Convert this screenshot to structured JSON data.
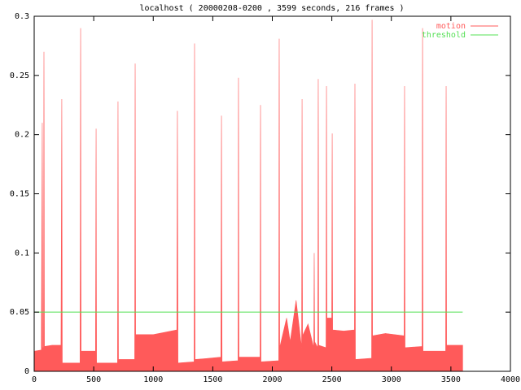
{
  "chart_data": {
    "type": "area",
    "title": "localhost ( 20000208-0200 , 3599 seconds, 216 frames )",
    "series": [
      {
        "name": "motion",
        "color": "#ff5a5a",
        "fill": true,
        "x": [
          0,
          60,
          68,
          72,
          78,
          82,
          86,
          150,
          225,
          232,
          236,
          240,
          385,
          390,
          394,
          398,
          515,
          520,
          524,
          528,
          700,
          704,
          708,
          712,
          844,
          848,
          852,
          1000,
          1100,
          1198,
          1203,
          1208,
          1343,
          1347,
          1351,
          1470,
          1568,
          1573,
          1578,
          1712,
          1716,
          1720,
          1897,
          1901,
          1905,
          2054,
          2058,
          2062,
          2120,
          2150,
          2200,
          2246,
          2250,
          2254,
          2300,
          2348,
          2352,
          2356,
          2382,
          2386,
          2390,
          2451,
          2455,
          2459,
          2499,
          2503,
          2507,
          2600,
          2690,
          2694,
          2698,
          2834,
          2838,
          2842,
          2950,
          3107,
          3111,
          3115,
          3258,
          3262,
          3266,
          3456,
          3460,
          3464,
          3599
        ],
        "values": [
          0.017,
          0.018,
          0.21,
          0.02,
          0.02,
          0.27,
          0.021,
          0.022,
          0.022,
          0.23,
          0.007,
          0.007,
          0.007,
          0.29,
          0.017,
          0.017,
          0.017,
          0.205,
          0.007,
          0.007,
          0.007,
          0.228,
          0.009,
          0.01,
          0.01,
          0.26,
          0.031,
          0.031,
          0.033,
          0.035,
          0.22,
          0.007,
          0.008,
          0.277,
          0.01,
          0.011,
          0.012,
          0.216,
          0.008,
          0.009,
          0.248,
          0.012,
          0.012,
          0.225,
          0.008,
          0.009,
          0.281,
          0.02,
          0.045,
          0.025,
          0.06,
          0.02,
          0.23,
          0.03,
          0.04,
          0.02,
          0.1,
          0.025,
          0.02,
          0.247,
          0.022,
          0.02,
          0.241,
          0.045,
          0.045,
          0.201,
          0.035,
          0.034,
          0.035,
          0.243,
          0.01,
          0.011,
          0.297,
          0.03,
          0.032,
          0.03,
          0.241,
          0.02,
          0.021,
          0.29,
          0.017,
          0.017,
          0.241,
          0.022,
          0.022
        ]
      },
      {
        "name": "threshold",
        "color": "#55e055",
        "fill": false,
        "x": [
          0,
          3599
        ],
        "values": [
          0.05,
          0.05
        ]
      }
    ],
    "xlim": [
      0,
      4000
    ],
    "xticks": [
      0,
      500,
      1000,
      1500,
      2000,
      2500,
      3000,
      3500,
      4000
    ],
    "ylim": [
      0,
      0.3
    ],
    "yticks": [
      0,
      0.05,
      0.1,
      0.15,
      0.2,
      0.25,
      0.3
    ],
    "legend": "top-right"
  }
}
